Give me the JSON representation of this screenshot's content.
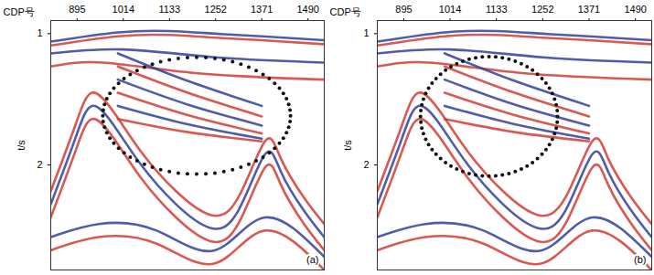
{
  "chart_data": {
    "type": "seismic_section",
    "x_label": "CDP号",
    "y_label": "t/s",
    "xlim": [
      827,
      1532
    ],
    "xticks": [
      895,
      1014,
      1133,
      1252,
      1371,
      1490
    ],
    "ylim": [
      0.9,
      2.8
    ],
    "yticks": [
      1,
      2
    ],
    "horizons": [
      {
        "color": "#2f3f9a",
        "cdp": [
          827,
          1000,
          1133,
          1252,
          1371,
          1532
        ],
        "t": [
          1.06,
          0.99,
          0.98,
          1.0,
          1.02,
          1.05
        ]
      },
      {
        "color": "#d33b34",
        "cdp": [
          827,
          1000,
          1133,
          1252,
          1371,
          1532
        ],
        "t": [
          1.09,
          1.02,
          1.01,
          1.03,
          1.05,
          1.08
        ]
      },
      {
        "color": "#2f3f9a",
        "cdp": [
          827,
          1014,
          1252,
          1532
        ],
        "t": [
          1.15,
          1.12,
          1.18,
          1.22
        ]
      },
      {
        "color": "#d33b34",
        "cdp": [
          827,
          960,
          1200,
          1532
        ],
        "t": [
          1.25,
          1.22,
          1.3,
          1.35
        ]
      },
      {
        "color": "#2f3f9a",
        "cdp": [
          1000,
          1180,
          1371
        ],
        "t": [
          1.15,
          1.36,
          1.55
        ]
      },
      {
        "color": "#d33b34",
        "cdp": [
          1000,
          1180,
          1371
        ],
        "t": [
          1.25,
          1.45,
          1.63
        ]
      },
      {
        "color": "#2f3f9a",
        "cdp": [
          1000,
          1180,
          1371
        ],
        "t": [
          1.35,
          1.54,
          1.7
        ]
      },
      {
        "color": "#d33b34",
        "cdp": [
          1000,
          1180,
          1371
        ],
        "t": [
          1.45,
          1.62,
          1.76
        ]
      },
      {
        "color": "#2f3f9a",
        "cdp": [
          1000,
          1180,
          1371
        ],
        "t": [
          1.55,
          1.69,
          1.8
        ]
      },
      {
        "color": "#d33b34",
        "cdp": [
          1000,
          1180,
          1371
        ],
        "t": [
          1.65,
          1.75,
          1.82
        ]
      },
      {
        "color": "#d33b34",
        "cdp": [
          827,
          890,
          933,
          990,
          1060,
          1150,
          1238,
          1310,
          1379,
          1420,
          1480,
          1532
        ],
        "t": [
          2.2,
          1.7,
          1.45,
          1.6,
          1.9,
          2.2,
          2.38,
          2.25,
          1.82,
          1.95,
          2.25,
          2.45
        ]
      },
      {
        "color": "#2f3f9a",
        "cdp": [
          827,
          890,
          933,
          990,
          1060,
          1150,
          1238,
          1310,
          1379,
          1420,
          1480,
          1532
        ],
        "t": [
          2.3,
          1.8,
          1.55,
          1.7,
          2.0,
          2.3,
          2.48,
          2.35,
          1.92,
          2.05,
          2.35,
          2.55
        ]
      },
      {
        "color": "#d33b34",
        "cdp": [
          827,
          890,
          933,
          990,
          1060,
          1150,
          1238,
          1310,
          1379,
          1420,
          1480,
          1532
        ],
        "t": [
          2.4,
          1.9,
          1.65,
          1.8,
          2.1,
          2.4,
          2.58,
          2.45,
          2.02,
          2.15,
          2.45,
          2.65
        ]
      },
      {
        "color": "#2f3f9a",
        "cdp": [
          827,
          950,
          1100,
          1250,
          1379,
          1532
        ],
        "t": [
          2.55,
          2.45,
          2.5,
          2.65,
          2.4,
          2.7
        ]
      },
      {
        "color": "#d33b34",
        "cdp": [
          827,
          950,
          1100,
          1250,
          1379,
          1532
        ],
        "t": [
          2.65,
          2.55,
          2.6,
          2.75,
          2.5,
          2.8
        ]
      }
    ],
    "panels": [
      {
        "label": "(a)",
        "ellipse": {
          "cdp_center": 1203,
          "t_center": 1.625,
          "cdp_radius": 242,
          "t_radius": 0.445
        },
        "marker": "dot"
      },
      {
        "label": "(b)",
        "ellipse": {
          "cdp_center": 1114,
          "t_center": 1.63,
          "cdp_radius": 176,
          "t_radius": 0.455
        },
        "marker": "dot"
      }
    ]
  }
}
